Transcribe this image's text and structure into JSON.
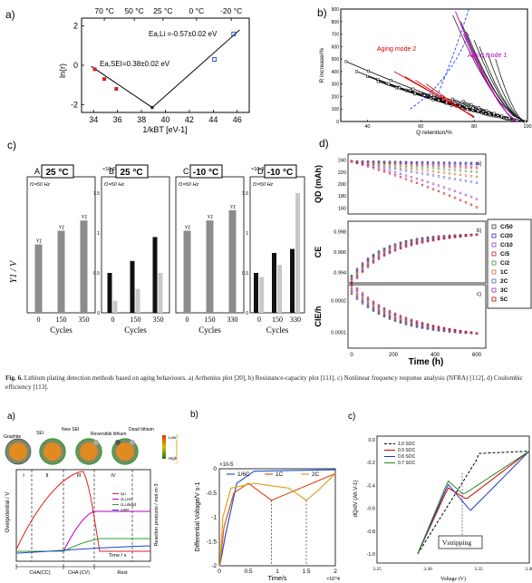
{
  "caption": {
    "figure": "Fig. 6.",
    "text": "Lithium plating detection methods based on aging behaviours. a) Arrhenius plot [20], b) Resistance-capacity plot [111], c) Nonlinear frequency response analysis (NFRA) [112], d) Coulombic efficiency [113]."
  },
  "panel_labels": {
    "top_a": "a)",
    "top_b": "b)",
    "top_c": "c)",
    "top_d": "d)",
    "bot_a": "a)",
    "bot_b": "b)",
    "bot_c": "c)"
  },
  "chart_data": [
    {
      "id": "arrhenius",
      "type": "line",
      "top_axis_ticks": [
        "70 °C",
        "50 °C",
        "25 °C",
        "0 °C",
        "-20 °C"
      ],
      "x_ticks": [
        "34",
        "36",
        "38",
        "40",
        "42",
        "44",
        "46"
      ],
      "xlim": [
        33,
        47
      ],
      "ylim": [
        -2.4,
        2.4
      ],
      "y_ticks": [
        "-2",
        "0",
        "2"
      ],
      "ylabel": "ln(r)",
      "xlabel": "1/kBT [eV-1]",
      "annotations": [
        "Ea,Li =-0.57±0.02 eV",
        "Ea,SEI=0.38±0.02 eV"
      ],
      "points_red": [
        {
          "x": 34.1,
          "y": -0.2
        },
        {
          "x": 34.9,
          "y": -0.7
        },
        {
          "x": 35.9,
          "y": -1.2
        }
      ],
      "points_blue": [
        {
          "x": 44.1,
          "y": 0.3
        },
        {
          "x": 45.7,
          "y": 1.6
        }
      ],
      "vertex": {
        "x": 38.9,
        "y": -2.15
      },
      "fit_start": {
        "x": 33.8,
        "y": -0.05
      },
      "fit_end": {
        "x": 46.2,
        "y": 1.8
      }
    },
    {
      "id": "resistance-capacity",
      "type": "scatter",
      "ylabel": "R increase/%",
      "xlabel": "Q retention/%",
      "x_ticks": [
        "40",
        "60",
        "80",
        "100"
      ],
      "y_ticks": [
        "0",
        "100",
        "200",
        "300",
        "400",
        "500",
        "600",
        "700",
        "800",
        "900"
      ],
      "xlim": [
        30,
        100
      ],
      "ylim": [
        0,
        900
      ],
      "annotations": [
        "Aging mode 2",
        "Aging mode 1"
      ]
    },
    {
      "id": "nfra",
      "type": "bar",
      "ylabel": "Y1 / V",
      "xlabel": "Cycles",
      "categories": [
        "0",
        "150",
        "350"
      ],
      "subplots": [
        {
          "letter": "A",
          "temp": "25 °C",
          "freq": "f1=50 Hz",
          "scale": "",
          "values": [
            0.2,
            0.24,
            0.27
          ],
          "labels": [
            "Y1",
            "Y1",
            "Y1"
          ],
          "categories": [
            "0",
            "150",
            "350"
          ],
          "color": "#8c8c8c",
          "ymax": 0.35
        },
        {
          "letter": "B",
          "temp": "25 °C",
          "freq": "f1=50 Hz",
          "scale": "×10-2",
          "groups": [
            {
              "c": "0",
              "v": [
                0.5,
                0.15
              ]
            },
            {
              "c": "150",
              "v": [
                0.65,
                0.3
              ]
            },
            {
              "c": "350",
              "v": [
                0.95,
                0.5
              ]
            }
          ],
          "categories": [
            "0",
            "150",
            "350"
          ],
          "ymax": 1.5,
          "ticks": [
            "0",
            "0.5",
            "1",
            "1.5"
          ]
        },
        {
          "letter": "C",
          "temp": "-10 °C",
          "freq": "f1=50 Hz",
          "scale": "",
          "values": [
            0.24,
            0.27,
            0.3
          ],
          "labels": [
            "Y1",
            "Y1",
            "Y1"
          ],
          "categories": [
            "0",
            "150",
            "330"
          ],
          "color": "#8c8c8c",
          "ymax": 0.35
        },
        {
          "letter": "D",
          "temp": "-10 °C",
          "freq": "f1=50 Hz",
          "scale": "×10-3",
          "groups": [
            {
              "c": "0",
              "v": [
                0.5,
                0.45
              ]
            },
            {
              "c": "150",
              "v": [
                0.75,
                0.6
              ]
            },
            {
              "c": "330",
              "v": [
                0.8,
                1.5
              ]
            }
          ],
          "categories": [
            "0",
            "150",
            "330"
          ],
          "ymax": 1.5,
          "ticks": [
            "0",
            "0.5",
            "1",
            "1.5"
          ]
        }
      ]
    },
    {
      "id": "coulombic",
      "type": "scatter",
      "xlabel": "Time (h)",
      "x_ticks": [
        "0",
        "200",
        "400",
        "600"
      ],
      "subplots": [
        {
          "ylabel": "QD (mAh)",
          "tag": "a)",
          "ticks": [
            "240",
            "220",
            "200",
            "180",
            "160"
          ]
        },
        {
          "ylabel": "CE",
          "tag": "b)",
          "ticks": [
            "0.998",
            "0.996",
            "0.994"
          ]
        },
        {
          "ylabel": "CIE/h",
          "tag": "c)",
          "ticks": [
            "0.0002",
            "0.0001"
          ]
        }
      ],
      "legend": [
        "C/50",
        "C/20",
        "C/10",
        "C/5",
        "C/2",
        "1C",
        "2C",
        "3C",
        "5C"
      ]
    },
    {
      "id": "overpotential-schematic",
      "type": "line",
      "ylabel": "Overpotential / V",
      "ylabel_right": "Reaction products / mol·m-3",
      "xlabel": "Time / s",
      "stage_labels": [
        "Graphite",
        "SEI",
        "New SEI",
        "Reversible lithium",
        "Dead lithium"
      ],
      "color_scale": [
        "Low",
        "High"
      ],
      "color_scale_title": "Li concentration (c)",
      "phases": [
        "I",
        "II",
        "III",
        "IV"
      ],
      "regions": [
        "CHA(CC)",
        "CHA (CV)",
        "Rest"
      ],
      "legend": [
        "ηLi",
        "cLi,rev",
        "cLi,dead",
        "cSEI"
      ]
    },
    {
      "id": "differential-voltage",
      "type": "line",
      "ylabel": "Differential Voltage/V s-1",
      "xlabel": "Time/s",
      "y_scale": "×10-5",
      "x_scale": "×10^4",
      "x_ticks": [
        "0",
        "0.5",
        "1",
        "1.5",
        "2"
      ],
      "y_ticks": [
        "0",
        "-0.5",
        "-1",
        "-1.5",
        "-2"
      ],
      "legend": [
        "1/6C",
        "1C",
        "2C"
      ]
    },
    {
      "id": "dqdv",
      "type": "line",
      "ylabel": "dQ/dV (Ah V-1)",
      "xlabel": "Voltage (V)",
      "x_ticks": [
        "3.25",
        "3.30",
        "3.35",
        "3.40"
      ],
      "y_ticks": [
        "0.0",
        "-0.2",
        "-0.4",
        "-0.6",
        "-0.8",
        "-1.0"
      ],
      "legend": [
        "1.0 SOC",
        "0.9 SOC",
        "0.8 SOC",
        "0.7 SOC"
      ],
      "annotation": "Vstripping"
    }
  ]
}
